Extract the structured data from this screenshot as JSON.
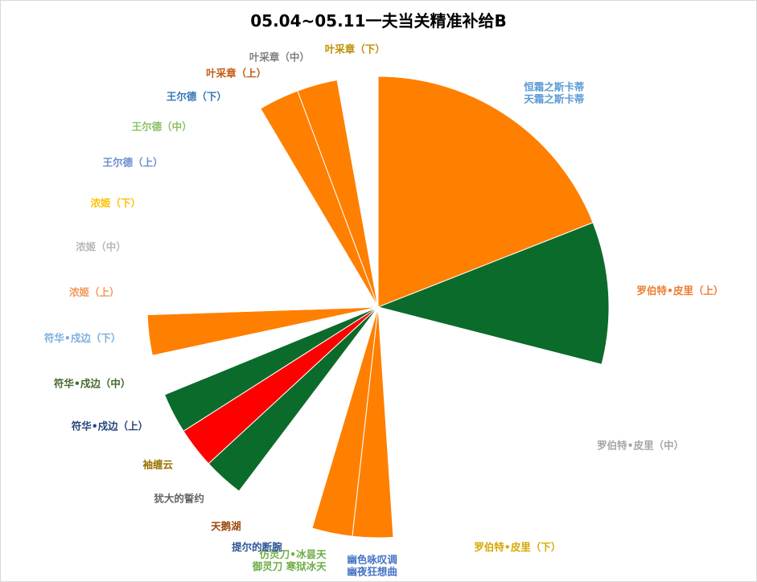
{
  "chart_data": {
    "type": "pie",
    "title": "05.04~05.11一夫当关精准补给B",
    "start_angle_deg": 0,
    "direction": "clockwise",
    "slices": [
      {
        "label": "恒霜之斯卡蒂\n天霜之斯卡蒂",
        "value": 20.8,
        "color": "#ff7f00",
        "label_color": "#5b9bd5"
      },
      {
        "label": "罗伯特•皮里（上）",
        "value": 10.9,
        "color": "#0b6b2b",
        "label_color": "#ed7d31"
      },
      {
        "label": "罗伯特•皮里（中）",
        "value": 10.9,
        "color": "#ffffff",
        "label_color": "#a5a5a5"
      },
      {
        "label": "罗伯特•皮里（下）",
        "value": 10.9,
        "color": "#ffffff",
        "label_color": "#d6a800"
      },
      {
        "label": "幽色咏叹调\n幽夜狂想曲",
        "value": 3.1,
        "color": "#ff7f00",
        "label_color": "#4472c4"
      },
      {
        "label": "仿灵刀•冰昙天\n御灵刀 寒狱冰天",
        "value": 3.1,
        "color": "#ff7f00",
        "label_color": "#70ad47"
      },
      {
        "label": "提尔的断腕",
        "value": 3.1,
        "color": "#ffffff",
        "label_color": "#2f5597"
      },
      {
        "label": "天鹅湖",
        "value": 3.1,
        "color": "#ffffff",
        "label_color": "#9e480e"
      },
      {
        "label": "犹大的誓约",
        "value": 3.1,
        "color": "#0b6b2b",
        "label_color": "#636363"
      },
      {
        "label": "袖缠云",
        "value": 3.1,
        "color": "#ff0000",
        "label_color": "#997300"
      },
      {
        "label": "符华•戍边（上）",
        "value": 3.1,
        "color": "#0b6b2b",
        "label_color": "#264478"
      },
      {
        "label": "符华•戍边（中）",
        "value": 3.1,
        "color": "#ffffff",
        "label_color": "#43682b"
      },
      {
        "label": "符华•戍边（下）",
        "value": 3.1,
        "color": "#ff7f00",
        "label_color": "#7cafdd"
      },
      {
        "label": "浓姬（上）",
        "value": 3.1,
        "color": "#ffffff",
        "label_color": "#f1975a"
      },
      {
        "label": "浓姬（中）",
        "value": 3.1,
        "color": "#ffffff",
        "label_color": "#b7b7b7"
      },
      {
        "label": "浓姬（下）",
        "value": 3.1,
        "color": "#ffffff",
        "label_color": "#ffc000"
      },
      {
        "label": "王尔德（上）",
        "value": 3.1,
        "color": "#ffffff",
        "label_color": "#698ed0"
      },
      {
        "label": "王尔德（中）",
        "value": 3.1,
        "color": "#ffffff",
        "label_color": "#8cc168"
      },
      {
        "label": "王尔德（下）",
        "value": 3.1,
        "color": "#ffffff",
        "label_color": "#2e75b6"
      },
      {
        "label": "叶采章（上）",
        "value": 3.1,
        "color": "#ff7f00",
        "label_color": "#c55a11"
      },
      {
        "label": "叶采章（中）",
        "value": 3.1,
        "color": "#ff7f00",
        "label_color": "#7f7f7f"
      },
      {
        "label": "叶采章（下）",
        "value": 3.1,
        "color": "#ffffff",
        "label_color": "#bf9000"
      }
    ],
    "legend": "none"
  }
}
